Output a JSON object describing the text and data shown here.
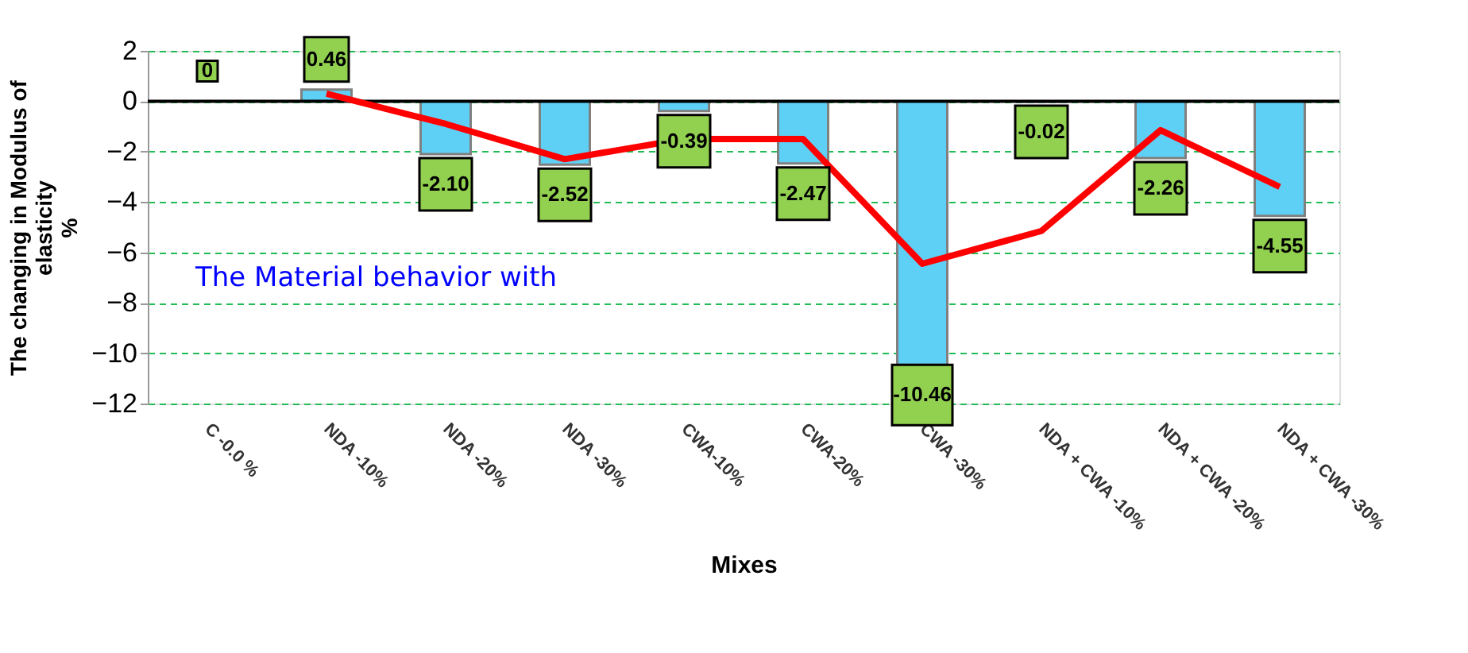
{
  "chart_data": {
    "type": "bar",
    "xlabel": "Mixes",
    "ylabel": "The changing in Modulus of\nelasticity\n%",
    "categories": [
      "C -0.0 %",
      "NDA -10%",
      "NDA -20%",
      "NDA -30%",
      "CWA-10%",
      "CWA-20%",
      "CWA -30%",
      "NDA +  CWA -10%",
      "NDA +  CWA -20%",
      "NDA +  CWA -30%"
    ],
    "series": [
      {
        "color": "#5fd0f5",
        "values": [
          0,
          0.46,
          -2.1,
          -2.52,
          -0.39,
          -2.47,
          -10.46,
          -0.02,
          -2.26,
          -4.55
        ],
        "value_labels": [
          "0",
          "0.46",
          "-2.10",
          "-2.52",
          "-0.39",
          "-2.47",
          "-10.46",
          "-0.02",
          "-2.26",
          "-4.55"
        ]
      },
      {
        "type": "line",
        "color": "#ff0000",
        "values": [
          null,
          0.3,
          -0.9,
          -2.3,
          -1.5,
          -1.5,
          -6.45,
          -5.15,
          -1.15,
          -3.4
        ]
      }
    ],
    "ylim": [
      -12,
      2
    ],
    "yticks": [
      -12,
      -10,
      -8,
      -6,
      -4,
      -2,
      0,
      2
    ],
    "grid": "y",
    "annotations": [
      "The Material behavior with"
    ]
  }
}
